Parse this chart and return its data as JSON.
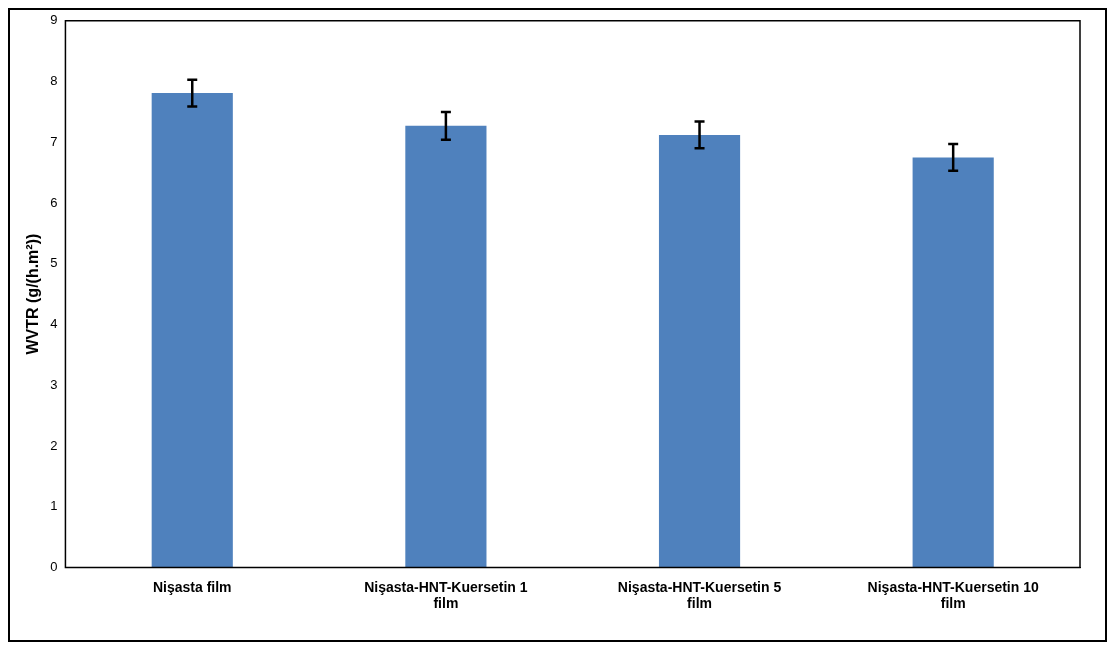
{
  "chart_data": {
    "type": "bar",
    "ylabel": "WVTR (g/(h.m²))",
    "categories": [
      "Nişasta film",
      "Nişasta-HNT-Kuersetin 1 film",
      "Nişasta-HNT-Kuersetin 5 film",
      "Nişasta-HNT-Kuersetin 10 film"
    ],
    "values": [
      7.81,
      7.27,
      7.12,
      6.75
    ],
    "errors": [
      0.22,
      0.23,
      0.22,
      0.22
    ],
    "color": "#4f81bd",
    "ylim": [
      0,
      9
    ],
    "yticks": [
      0,
      1,
      2,
      3,
      4,
      5,
      6,
      7,
      8,
      9
    ],
    "grid": false,
    "legend": false
  }
}
